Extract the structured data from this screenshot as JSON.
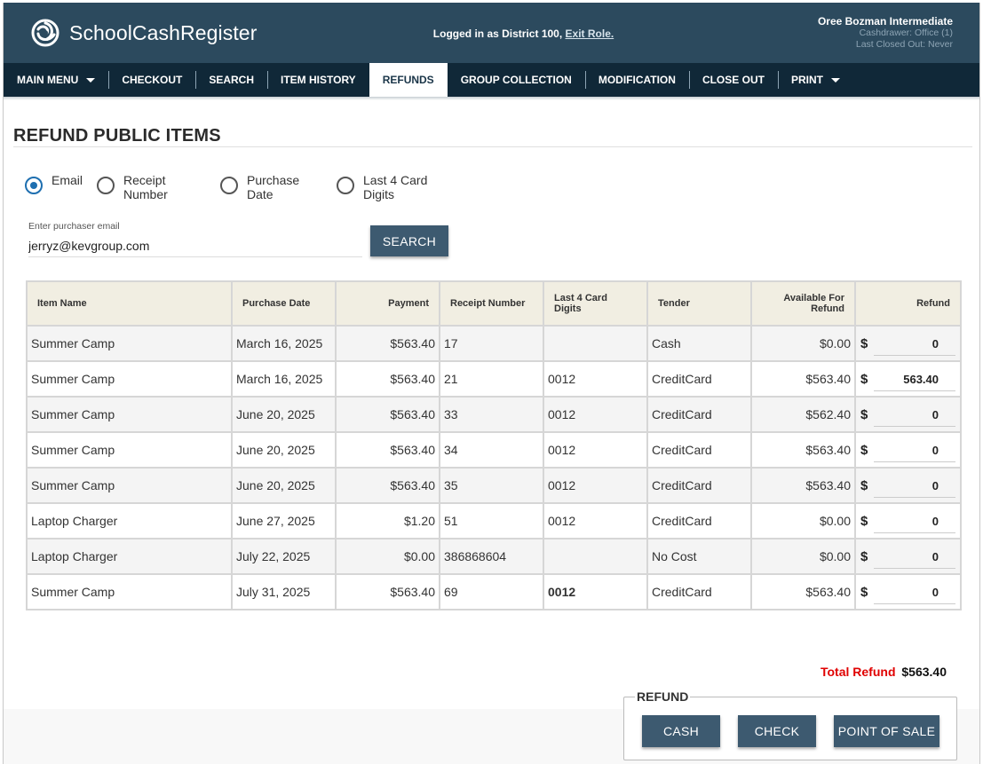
{
  "header": {
    "app_name": "SchoolCashRegister",
    "login_text": "Logged in as District 100,",
    "exit_role_label": "Exit Role.",
    "user_name": "Oree Bozman Intermediate",
    "cashdrawer": "Cashdrawer: Office (1)",
    "last_closed": "Last Closed Out: Never"
  },
  "nav": {
    "items": [
      {
        "label": "MAIN MENU",
        "dropdown": true
      },
      {
        "label": "CHECKOUT"
      },
      {
        "label": "SEARCH"
      },
      {
        "label": "ITEM HISTORY"
      },
      {
        "label": "REFUNDS",
        "active": true
      },
      {
        "label": "GROUP COLLECTION"
      },
      {
        "label": "MODIFICATION"
      },
      {
        "label": "CLOSE OUT"
      },
      {
        "label": "PRINT",
        "dropdown": true
      }
    ]
  },
  "page": {
    "title": "REFUND PUBLIC ITEMS"
  },
  "search_options": {
    "selected": "Email",
    "options": [
      {
        "line1": "Email",
        "line2": ""
      },
      {
        "line1": "Receipt",
        "line2": "Number"
      },
      {
        "line1": "Purchase",
        "line2": "Date"
      },
      {
        "line1": "Last 4 Card",
        "line2": "Digits"
      }
    ]
  },
  "email_search": {
    "label": "Enter purchaser email",
    "value": "jerryz@kevgroup.com",
    "button_label": "SEARCH"
  },
  "table": {
    "headers": {
      "item_name": "Item Name",
      "purchase_date": "Purchase Date",
      "payment": "Payment",
      "receipt_number": "Receipt Number",
      "last4": "Last 4 Card Digits",
      "tender": "Tender",
      "available_line1": "Available For",
      "available_line2": "Refund",
      "refund": "Refund"
    },
    "currency_symbol": "$",
    "rows": [
      {
        "item": "Summer Camp",
        "date": "March 16, 2025",
        "payment": "$563.40",
        "receipt": "17",
        "last4": "",
        "tender": "Cash",
        "available": "$0.00",
        "refund": "0"
      },
      {
        "item": "Summer Camp",
        "date": "March 16, 2025",
        "payment": "$563.40",
        "receipt": "21",
        "last4": "0012",
        "tender": "CreditCard",
        "available": "$563.40",
        "refund": "563.40"
      },
      {
        "item": "Summer Camp",
        "date": "June 20, 2025",
        "payment": "$563.40",
        "receipt": "33",
        "last4": "0012",
        "tender": "CreditCard",
        "available": "$562.40",
        "refund": "0"
      },
      {
        "item": "Summer Camp",
        "date": "June 20, 2025",
        "payment": "$563.40",
        "receipt": "34",
        "last4": "0012",
        "tender": "CreditCard",
        "available": "$563.40",
        "refund": "0"
      },
      {
        "item": "Summer Camp",
        "date": "June 20, 2025",
        "payment": "$563.40",
        "receipt": "35",
        "last4": "0012",
        "tender": "CreditCard",
        "available": "$563.40",
        "refund": "0"
      },
      {
        "item": "Laptop Charger",
        "date": "June 27, 2025",
        "payment": "$1.20",
        "receipt": "51",
        "last4": "0012",
        "tender": "CreditCard",
        "available": "$0.00",
        "refund": "0"
      },
      {
        "item": "Laptop Charger",
        "date": "July 22, 2025",
        "payment": "$0.00",
        "receipt": "386868604",
        "last4": "",
        "tender": "No Cost",
        "available": "$0.00",
        "refund": "0"
      },
      {
        "item": "Summer Camp",
        "date": "July 31, 2025",
        "payment": "$563.40",
        "receipt": "69",
        "last4": "0012",
        "last4_bold": true,
        "tender": "CreditCard",
        "available": "$563.40",
        "refund": "0"
      }
    ]
  },
  "totals": {
    "label": "Total Refund",
    "value": "$563.40"
  },
  "refund_panel": {
    "legend": "REFUND",
    "cash_label": "CASH",
    "check_label": "CHECK",
    "pos_label": "POINT OF SALE"
  },
  "colors": {
    "header_bg": "#2c4a5e",
    "nav_bg": "#102838",
    "button_bg": "#3d5a70",
    "total_label": "#e00000",
    "radio_selected": "#1e6fb0",
    "table_header_bg": "#f1eee2"
  }
}
